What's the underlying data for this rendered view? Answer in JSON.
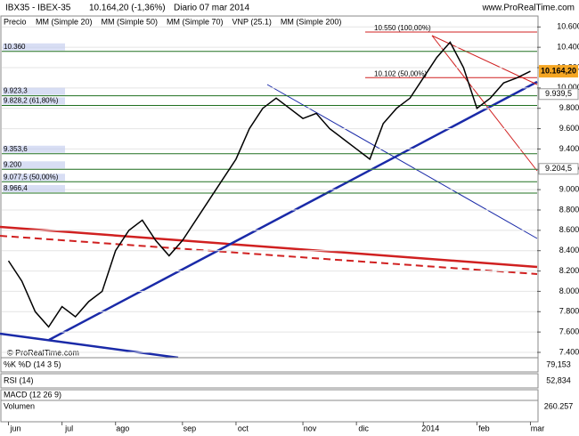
{
  "chart_data": {
    "type": "line",
    "title": "IBX35 - IBEX-35",
    "subtitle": "10.164,20 (-1,36%)",
    "period": "Diario  07 mar 2014",
    "watermark_top": "www.ProRealTime.com",
    "watermark_bottom": "© ProRealTime.com",
    "categories": [
      "jun",
      null,
      null,
      null,
      "jul",
      null,
      null,
      null,
      "ago",
      null,
      null,
      null,
      null,
      "sep",
      null,
      null,
      null,
      "oct",
      null,
      null,
      null,
      null,
      "nov",
      null,
      null,
      null,
      "dic",
      null,
      null,
      null,
      null,
      "2014",
      null,
      null,
      null,
      "feb",
      null,
      null,
      null,
      "mar"
    ],
    "series": [
      {
        "name": "Precio",
        "color": "#000000",
        "values": [
          8300,
          8100,
          7800,
          7650,
          7850,
          7750,
          7900,
          8000,
          8400,
          8600,
          8700,
          8500,
          8350,
          8500,
          8700,
          8900,
          9100,
          9300,
          9600,
          9800,
          9900,
          9800,
          9700,
          9750,
          9600,
          9500,
          9400,
          9300,
          9650,
          9800,
          9900,
          10100,
          10300,
          10450,
          10200,
          9800,
          9900,
          10050,
          10100,
          10164.2
        ]
      }
    ],
    "indicators": [
      {
        "name": "MM (Simple 20)",
        "color": "#e03030"
      },
      {
        "name": "MM (Simple 50)",
        "color": "#909090"
      },
      {
        "name": "MM (Simple 70)",
        "color": "#1a2aa8"
      },
      {
        "name": "VNP (25.1)",
        "color": "#a0a8c8"
      },
      {
        "name": "MM (Simple 200)",
        "color": "#207020"
      }
    ],
    "ylim": [
      7365,
      10690
    ],
    "yticks": [
      {
        "value": 7400,
        "label": "7.400"
      },
      {
        "value": 7600,
        "label": "7.600"
      },
      {
        "value": 7800,
        "label": "7.800"
      },
      {
        "value": 8000,
        "label": "8.000"
      },
      {
        "value": 8200,
        "label": "8.200"
      },
      {
        "value": 8400,
        "label": "8.400"
      },
      {
        "value": 8600,
        "label": "8.600"
      },
      {
        "value": 8800,
        "label": "8.800"
      },
      {
        "value": 9000,
        "label": "9.000"
      },
      {
        "value": 9200,
        "label": "9.200"
      },
      {
        "value": 9400,
        "label": "9.400"
      },
      {
        "value": 9600,
        "label": "9.600"
      },
      {
        "value": 9800,
        "label": "9.800"
      },
      {
        "value": 10000,
        "label": "10.000"
      },
      {
        "value": 10200,
        "label": "10.200"
      },
      {
        "value": 10400,
        "label": "10.400"
      },
      {
        "value": 10600,
        "label": "10.600"
      }
    ],
    "last_price": {
      "value": 10164.2,
      "label": "10.164,20"
    },
    "right_labels": [
      {
        "value": 9939.5,
        "label": "9.939,5"
      },
      {
        "value": 9204.5,
        "label": "9.204,5"
      }
    ],
    "left_levels": [
      {
        "value": 10360,
        "label": "10.360"
      },
      {
        "value": 9923.3,
        "label": "9.923,3"
      },
      {
        "value": 9828.2,
        "label": "9.828,2 (61,80%)"
      },
      {
        "value": 9353.6,
        "label": "9.353,6"
      },
      {
        "value": 9200,
        "label": "9.200"
      },
      {
        "value": 9077.5,
        "label": "9.077,5 (50,00%)"
      },
      {
        "value": 8966.4,
        "label": "8.966,4"
      }
    ],
    "fib_levels": [
      {
        "value": 10550,
        "label": "10.550 (100,00%)"
      },
      {
        "value": 10102,
        "label": "10.102 (50,00%)"
      }
    ],
    "panels": [
      {
        "name": "%K %D (14 3 5)",
        "value_label": "79,153"
      },
      {
        "name": "RSI (14)",
        "value_label": "52,834"
      },
      {
        "name": "MACD (12 26 9)",
        "value_label": ""
      },
      {
        "name": "Volumen",
        "value_label": "260.257"
      }
    ],
    "grid": true
  }
}
